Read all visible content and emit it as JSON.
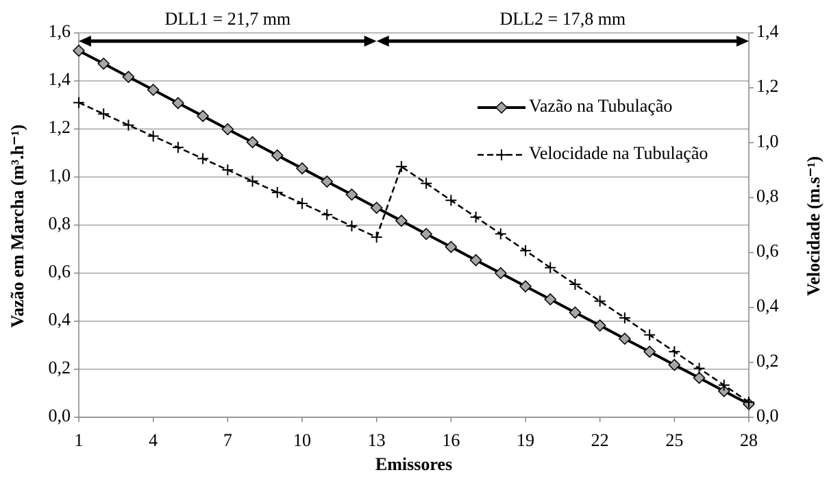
{
  "chart_data": {
    "type": "line",
    "x_label": "Emissores",
    "y_label": "Vazão em Marcha (m³.h⁻¹)",
    "y2_label": "Velocidade (m.s⁻¹)",
    "x": [
      1,
      2,
      3,
      4,
      5,
      6,
      7,
      8,
      9,
      10,
      11,
      12,
      13,
      14,
      15,
      16,
      17,
      18,
      19,
      20,
      21,
      22,
      23,
      24,
      25,
      26,
      27,
      28
    ],
    "xlim": [
      1,
      28
    ],
    "xticks": [
      1,
      4,
      7,
      10,
      13,
      16,
      19,
      22,
      25,
      28
    ],
    "ylim": [
      0,
      1.6
    ],
    "yticks": [
      {
        "value": 0,
        "label": "0,0"
      },
      {
        "value": 0.2,
        "label": "0,2"
      },
      {
        "value": 0.4,
        "label": "0,4"
      },
      {
        "value": 0.6,
        "label": "0,6"
      },
      {
        "value": 0.8,
        "label": "0,8"
      },
      {
        "value": 1.0,
        "label": "1,0"
      },
      {
        "value": 1.2,
        "label": "1,2"
      },
      {
        "value": 1.4,
        "label": "1,4"
      },
      {
        "value": 1.6,
        "label": "1,6"
      }
    ],
    "y2lim": [
      0,
      1.4
    ],
    "y2ticks": [
      {
        "value": 0,
        "label": "0,0"
      },
      {
        "value": 0.2,
        "label": "0,2"
      },
      {
        "value": 0.4,
        "label": "0,4"
      },
      {
        "value": 0.6,
        "label": "0,6"
      },
      {
        "value": 0.8,
        "label": "0,8"
      },
      {
        "value": 1.0,
        "label": "1,0"
      },
      {
        "value": 1.2,
        "label": "1,2"
      },
      {
        "value": 1.4,
        "label": "1,4"
      }
    ],
    "grid": true,
    "series": [
      {
        "name": "Vazão na Tubulação",
        "color": "#000000",
        "marker": "diamond",
        "marker_fill": "#a6a6a6",
        "line_style": "solid",
        "values": [
          1.526,
          1.472,
          1.417,
          1.363,
          1.308,
          1.254,
          1.199,
          1.145,
          1.09,
          1.036,
          0.981,
          0.927,
          0.872,
          0.818,
          0.763,
          0.709,
          0.654,
          0.6,
          0.545,
          0.491,
          0.436,
          0.382,
          0.327,
          0.273,
          0.218,
          0.164,
          0.109,
          0.055
        ]
      },
      {
        "name": "Velocidade na Tubulação",
        "color": "#000000",
        "marker": "plus",
        "line_style": "dashed",
        "axis": "y2",
        "values": [
          1.146,
          1.105,
          1.064,
          1.024,
          0.983,
          0.942,
          0.901,
          0.86,
          0.819,
          0.779,
          0.738,
          0.697,
          0.656,
          0.913,
          0.852,
          0.79,
          0.729,
          0.668,
          0.607,
          0.545,
          0.484,
          0.423,
          0.362,
          0.3,
          0.239,
          0.178,
          0.117,
          0.055
        ]
      }
    ],
    "annotations": [
      {
        "text": "DLL1 = 21,7 mm",
        "x": [
          1,
          13
        ]
      },
      {
        "text": "DLL2 = 17,8 mm",
        "x": [
          13,
          28
        ]
      }
    ]
  }
}
